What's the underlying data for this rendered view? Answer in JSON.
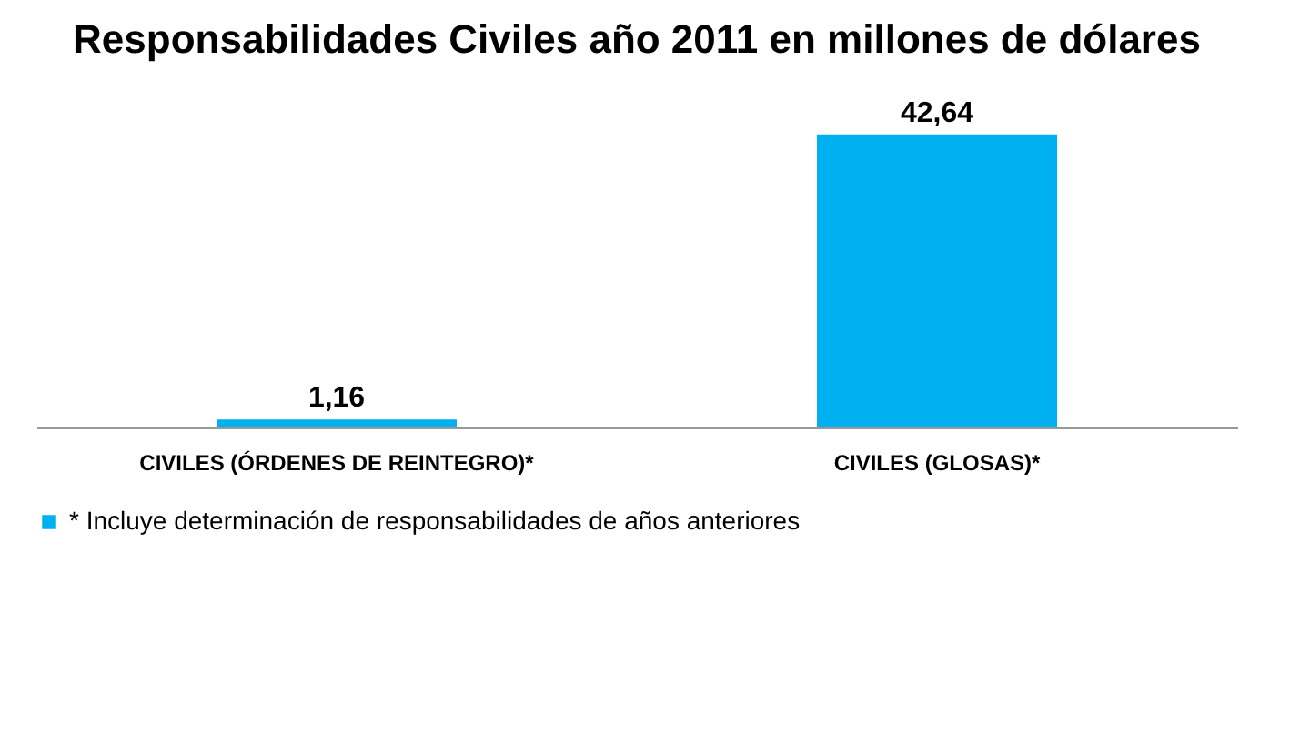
{
  "chart_data": {
    "type": "bar",
    "title": "Responsabilidades Civiles año 2011 en millones de dólares",
    "categories": [
      "CIVILES (ÓRDENES DE REINTEGRO)*",
      "CIVILES (GLOSAS)*"
    ],
    "series": [
      {
        "name": "* Incluye determinación  de responsabilidades de años anteriores",
        "color": "#00b0f0",
        "values": [
          1.16,
          42.64
        ],
        "value_labels": [
          "1,16",
          "42,64"
        ]
      }
    ],
    "legend": "bottom left",
    "grid": false
  }
}
